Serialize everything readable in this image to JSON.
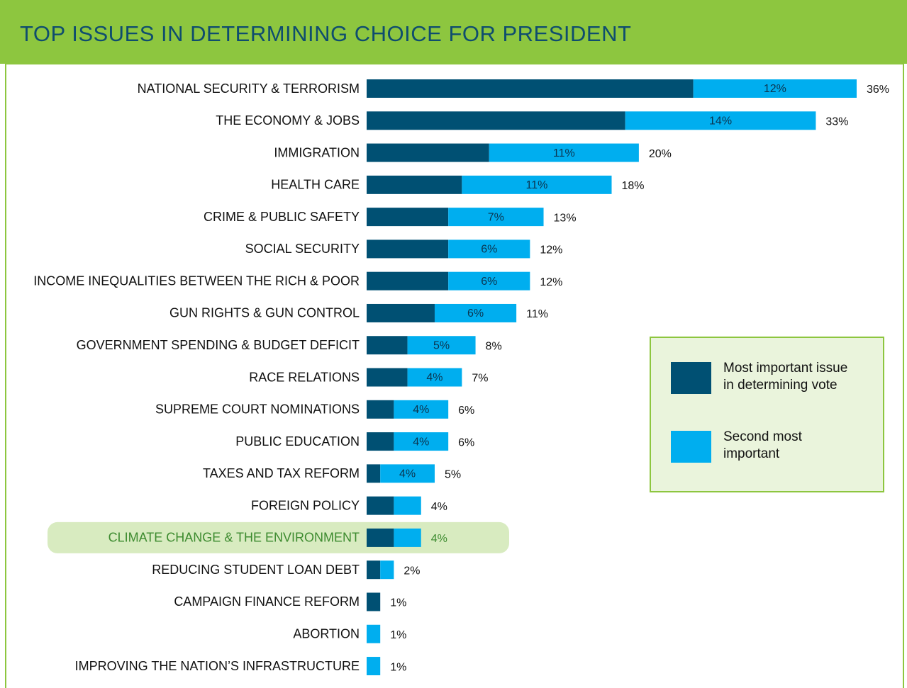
{
  "chart_data": {
    "type": "stacked-barh",
    "title": "TOP ISSUES IN DETERMINING CHOICE FOR PRESIDENT",
    "categories": [
      "NATIONAL SECURITY & TERRORISM",
      "THE ECONOMY & JOBS",
      "IMMIGRATION",
      "HEALTH CARE",
      "CRIME & PUBLIC SAFETY",
      "SOCIAL SECURITY",
      "INCOME INEQUALITIES BETWEEN THE RICH & POOR",
      "GUN RIGHTS & GUN CONTROL",
      "GOVERNMENT SPENDING & BUDGET DEFICIT",
      "RACE RELATIONS",
      "SUPREME COURT NOMINATIONS",
      "PUBLIC EDUCATION",
      "TAXES AND TAX REFORM",
      "FOREIGN POLICY",
      "CLIMATE CHANGE & THE ENVIRONMENT",
      "REDUCING STUDENT LOAN DEBT",
      "CAMPAIGN FINANCE REFORM",
      "ABORTION",
      "IMPROVING THE NATION’S INFRASTRUCTURE"
    ],
    "series": [
      {
        "name": "Most important issue in determining vote",
        "color": "#005073",
        "values": [
          24,
          19,
          9,
          7,
          6,
          6,
          6,
          5,
          3,
          3,
          2,
          2,
          1,
          2,
          2,
          1,
          1,
          0,
          0
        ]
      },
      {
        "name": "Second most important",
        "color": "#00aeef",
        "values": [
          12,
          14,
          11,
          11,
          7,
          6,
          6,
          6,
          5,
          4,
          4,
          4,
          4,
          2,
          2,
          1,
          0,
          1,
          1
        ],
        "value_labels": [
          "12%",
          "14%",
          "11%",
          "11%",
          "7%",
          "6%",
          "6%",
          "6%",
          "5%",
          "4%",
          "4%",
          "4%",
          "4%",
          null,
          null,
          null,
          null,
          null,
          null
        ]
      }
    ],
    "totals": [
      36,
      33,
      20,
      18,
      13,
      12,
      12,
      11,
      8,
      7,
      6,
      6,
      5,
      4,
      4,
      2,
      1,
      1,
      1
    ],
    "total_labels": [
      "36%",
      "33%",
      "20%",
      "18%",
      "13%",
      "12%",
      "12%",
      "11%",
      "8%",
      "7%",
      "6%",
      "6%",
      "5%",
      "4%",
      "4%",
      "2%",
      "1%",
      "1%",
      "1%"
    ],
    "highlight": 14,
    "legend": "right"
  }
}
